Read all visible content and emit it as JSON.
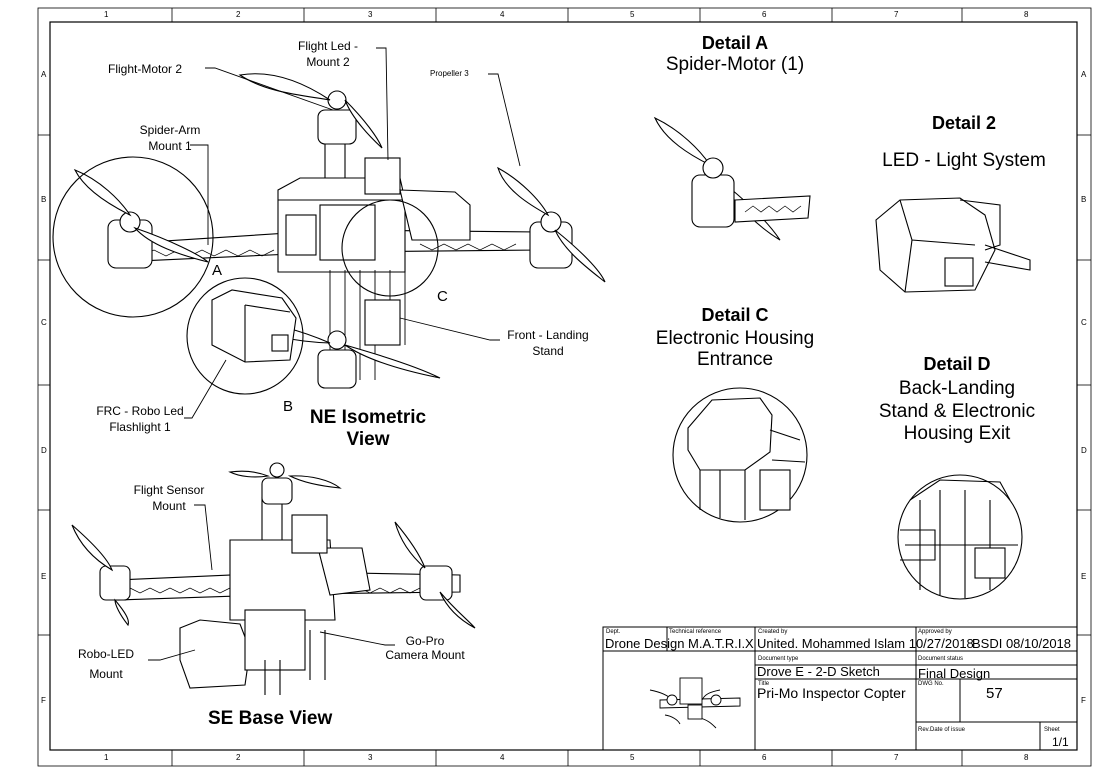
{
  "zones": {
    "columns": [
      "1",
      "2",
      "3",
      "4",
      "5",
      "6",
      "7",
      "8"
    ],
    "rows": [
      "A",
      "B",
      "C",
      "D",
      "E",
      "F"
    ]
  },
  "callouts": {
    "flight_led_mount": [
      "Flight Led -",
      "Mount 2"
    ],
    "flight_motor": "Flight-Motor 2",
    "propeller": "Propeller 3",
    "spider_arm": [
      "Spider-Arm",
      "Mount 1"
    ],
    "front_landing": [
      "Front - Landing",
      "Stand"
    ],
    "frc_led": [
      "FRC - Robo Led",
      "Flashlight 1"
    ],
    "flight_sensor": [
      "Flight Sensor",
      "Mount"
    ],
    "robo_led": [
      "Robo-LED",
      "Mount"
    ],
    "gopro": [
      "Go-Pro",
      "Camera Mount"
    ],
    "detail_letters": {
      "a": "A",
      "b": "B",
      "c": "C"
    }
  },
  "views": {
    "ne_iso": [
      "NE Isometric",
      "View"
    ],
    "se_base": "SE Base View"
  },
  "details": {
    "a": {
      "title": "Detail A",
      "subtitle": "Spider-Motor (1)"
    },
    "two": {
      "title": "Detail 2",
      "subtitle": "LED - Light System"
    },
    "c": {
      "title": "Detail C",
      "subtitle": [
        "Electronic Housing",
        "Entrance"
      ]
    },
    "d": {
      "title": "Detail D",
      "subtitle": [
        "Back-Landing",
        "Stand & Electronic",
        "Housing Exit"
      ]
    }
  },
  "title_block": {
    "dept_label": "Dept.",
    "dept": "Drone Design",
    "tech_ref_label": "Technical reference",
    "tech_ref": "M.A.T.R.I.X",
    "created_by_label": "Created by",
    "created_by": "United. Mohammed Islam 10/27/2018",
    "approved_by_label": "Approved by",
    "approved_by": "BSDI 08/10/2018",
    "doc_type_label": "Document type",
    "doc_type": "Drove E - 2-D Sketch",
    "doc_status_label": "Document status",
    "doc_status": "Final Design",
    "title_label": "Title",
    "title": "Pri-Mo Inspector Copter",
    "dwg_no_label": "DWG No.",
    "dwg_no": "57",
    "rev_label": "Rev.",
    "date_issue_label": "Date of issue",
    "sheet_label": "Sheet",
    "sheet": "1/1"
  }
}
